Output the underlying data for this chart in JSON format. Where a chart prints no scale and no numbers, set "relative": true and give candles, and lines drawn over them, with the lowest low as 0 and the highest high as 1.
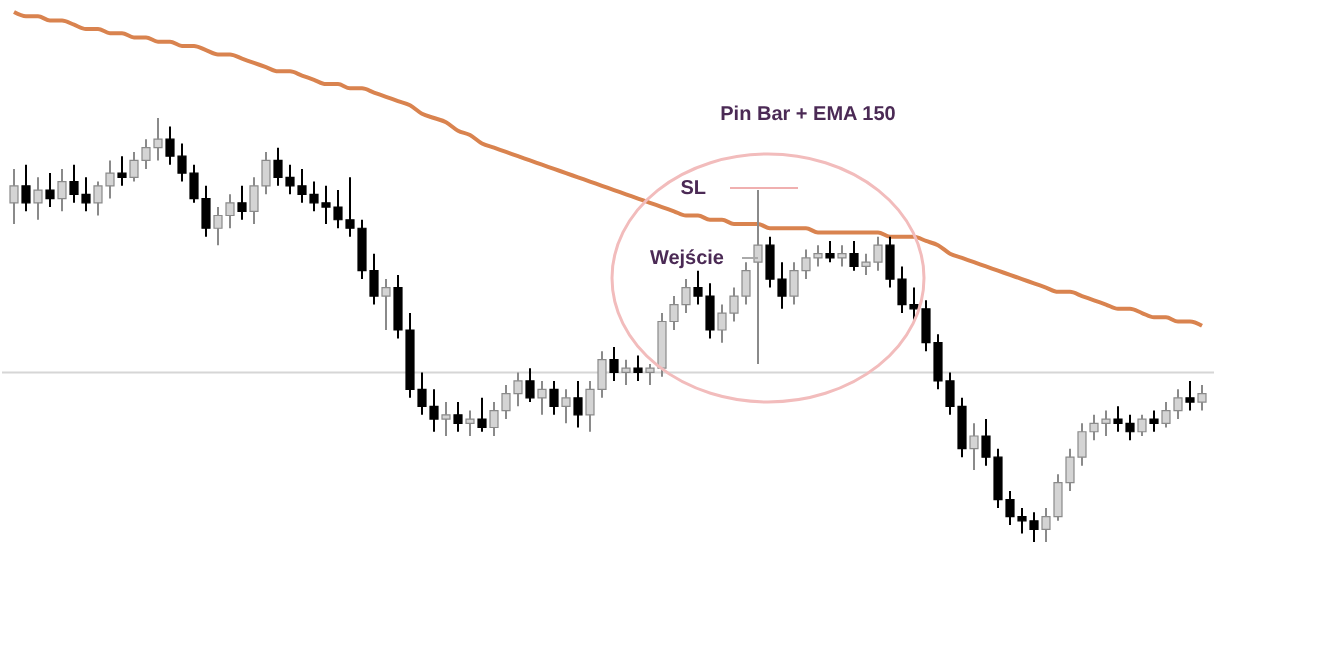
{
  "chart_data": {
    "type": "candlestick",
    "relative": true,
    "categories": [
      null,
      null,
      null,
      null,
      null,
      null,
      null,
      null,
      null,
      null,
      null,
      null,
      null,
      null,
      null,
      null,
      null,
      null,
      null,
      null,
      null,
      null,
      null,
      null,
      null,
      null,
      null,
      null,
      null,
      null,
      null,
      null,
      null,
      null,
      null,
      null,
      null,
      null,
      null,
      null,
      null,
      null,
      null,
      null,
      null,
      null,
      null,
      null,
      null,
      null,
      null,
      null,
      null,
      null,
      null,
      null,
      null,
      null,
      null,
      null,
      null,
      null,
      null,
      null,
      null,
      null,
      null,
      null,
      null,
      null,
      null,
      null,
      null,
      null,
      null,
      null,
      null,
      null,
      null,
      null,
      null,
      null,
      null,
      null,
      null,
      null,
      null,
      null,
      null,
      null,
      null,
      null,
      null,
      null,
      null,
      null,
      null,
      null,
      null,
      null
    ],
    "ohlc": [
      [
        0.8,
        0.88,
        0.75,
        0.84
      ],
      [
        0.84,
        0.89,
        0.78,
        0.8
      ],
      [
        0.8,
        0.86,
        0.76,
        0.83
      ],
      [
        0.83,
        0.87,
        0.79,
        0.81
      ],
      [
        0.81,
        0.88,
        0.78,
        0.85
      ],
      [
        0.85,
        0.89,
        0.8,
        0.82
      ],
      [
        0.82,
        0.86,
        0.78,
        0.8
      ],
      [
        0.8,
        0.85,
        0.77,
        0.84
      ],
      [
        0.84,
        0.9,
        0.81,
        0.87
      ],
      [
        0.87,
        0.91,
        0.84,
        0.86
      ],
      [
        0.86,
        0.92,
        0.85,
        0.9
      ],
      [
        0.9,
        0.95,
        0.88,
        0.93
      ],
      [
        0.93,
        1.0,
        0.9,
        0.95
      ],
      [
        0.95,
        0.98,
        0.89,
        0.91
      ],
      [
        0.91,
        0.94,
        0.85,
        0.87
      ],
      [
        0.87,
        0.89,
        0.8,
        0.81
      ],
      [
        0.81,
        0.84,
        0.72,
        0.74
      ],
      [
        0.74,
        0.79,
        0.7,
        0.77
      ],
      [
        0.77,
        0.82,
        0.74,
        0.8
      ],
      [
        0.8,
        0.84,
        0.76,
        0.78
      ],
      [
        0.78,
        0.86,
        0.75,
        0.84
      ],
      [
        0.84,
        0.92,
        0.82,
        0.9
      ],
      [
        0.9,
        0.93,
        0.84,
        0.86
      ],
      [
        0.86,
        0.89,
        0.82,
        0.84
      ],
      [
        0.84,
        0.88,
        0.8,
        0.82
      ],
      [
        0.82,
        0.85,
        0.78,
        0.8
      ],
      [
        0.8,
        0.84,
        0.75,
        0.79
      ],
      [
        0.79,
        0.83,
        0.74,
        0.76
      ],
      [
        0.76,
        0.86,
        0.72,
        0.74
      ],
      [
        0.74,
        0.76,
        0.62,
        0.64
      ],
      [
        0.64,
        0.68,
        0.56,
        0.58
      ],
      [
        0.58,
        0.62,
        0.5,
        0.6
      ],
      [
        0.6,
        0.63,
        0.48,
        0.5
      ],
      [
        0.5,
        0.54,
        0.34,
        0.36
      ],
      [
        0.36,
        0.4,
        0.3,
        0.32
      ],
      [
        0.32,
        0.36,
        0.26,
        0.29
      ],
      [
        0.29,
        0.33,
        0.25,
        0.3
      ],
      [
        0.3,
        0.33,
        0.26,
        0.28
      ],
      [
        0.28,
        0.31,
        0.25,
        0.29
      ],
      [
        0.29,
        0.34,
        0.26,
        0.27
      ],
      [
        0.27,
        0.33,
        0.25,
        0.31
      ],
      [
        0.31,
        0.37,
        0.29,
        0.35
      ],
      [
        0.35,
        0.4,
        0.32,
        0.38
      ],
      [
        0.38,
        0.41,
        0.33,
        0.34
      ],
      [
        0.34,
        0.38,
        0.3,
        0.36
      ],
      [
        0.36,
        0.38,
        0.3,
        0.32
      ],
      [
        0.32,
        0.36,
        0.28,
        0.34
      ],
      [
        0.34,
        0.38,
        0.27,
        0.3
      ],
      [
        0.3,
        0.38,
        0.26,
        0.36
      ],
      [
        0.36,
        0.45,
        0.34,
        0.43
      ],
      [
        0.43,
        0.46,
        0.38,
        0.4
      ],
      [
        0.4,
        0.43,
        0.37,
        0.41
      ],
      [
        0.41,
        0.44,
        0.38,
        0.4
      ],
      [
        0.4,
        0.42,
        0.37,
        0.41
      ],
      [
        0.41,
        0.54,
        0.39,
        0.52
      ],
      [
        0.52,
        0.58,
        0.5,
        0.56
      ],
      [
        0.56,
        0.62,
        0.54,
        0.6
      ],
      [
        0.6,
        0.64,
        0.56,
        0.58
      ],
      [
        0.58,
        0.61,
        0.48,
        0.5
      ],
      [
        0.5,
        0.56,
        0.47,
        0.54
      ],
      [
        0.54,
        0.6,
        0.52,
        0.58
      ],
      [
        0.58,
        0.66,
        0.56,
        0.64
      ],
      [
        0.66,
        0.83,
        0.42,
        0.7
      ],
      [
        0.7,
        0.72,
        0.6,
        0.62
      ],
      [
        0.62,
        0.66,
        0.55,
        0.58
      ],
      [
        0.58,
        0.66,
        0.56,
        0.64
      ],
      [
        0.64,
        0.69,
        0.62,
        0.67
      ],
      [
        0.67,
        0.7,
        0.65,
        0.68
      ],
      [
        0.68,
        0.71,
        0.66,
        0.67
      ],
      [
        0.67,
        0.7,
        0.65,
        0.68
      ],
      [
        0.68,
        0.71,
        0.64,
        0.65
      ],
      [
        0.65,
        0.68,
        0.63,
        0.66
      ],
      [
        0.66,
        0.72,
        0.64,
        0.7
      ],
      [
        0.7,
        0.72,
        0.6,
        0.62
      ],
      [
        0.62,
        0.65,
        0.54,
        0.56
      ],
      [
        0.56,
        0.6,
        0.52,
        0.55
      ],
      [
        0.55,
        0.57,
        0.45,
        0.47
      ],
      [
        0.47,
        0.49,
        0.36,
        0.38
      ],
      [
        0.38,
        0.4,
        0.3,
        0.32
      ],
      [
        0.32,
        0.34,
        0.2,
        0.22
      ],
      [
        0.22,
        0.28,
        0.17,
        0.25
      ],
      [
        0.25,
        0.29,
        0.18,
        0.2
      ],
      [
        0.2,
        0.22,
        0.08,
        0.1
      ],
      [
        0.1,
        0.12,
        0.04,
        0.06
      ],
      [
        0.06,
        0.08,
        0.02,
        0.05
      ],
      [
        0.05,
        0.07,
        0.0,
        0.03
      ],
      [
        0.03,
        0.08,
        0.0,
        0.06
      ],
      [
        0.06,
        0.16,
        0.05,
        0.14
      ],
      [
        0.14,
        0.22,
        0.12,
        0.2
      ],
      [
        0.2,
        0.28,
        0.18,
        0.26
      ],
      [
        0.26,
        0.3,
        0.24,
        0.28
      ],
      [
        0.28,
        0.31,
        0.25,
        0.29
      ],
      [
        0.29,
        0.32,
        0.26,
        0.28
      ],
      [
        0.28,
        0.3,
        0.24,
        0.26
      ],
      [
        0.26,
        0.3,
        0.25,
        0.29
      ],
      [
        0.29,
        0.31,
        0.26,
        0.28
      ],
      [
        0.28,
        0.33,
        0.27,
        0.31
      ],
      [
        0.31,
        0.36,
        0.29,
        0.34
      ],
      [
        0.34,
        0.38,
        0.31,
        0.33
      ],
      [
        0.33,
        0.37,
        0.31,
        0.35
      ]
    ],
    "series": [
      {
        "type": "line",
        "color": "#d9834f",
        "values": [
          1.25,
          1.24,
          1.24,
          1.23,
          1.23,
          1.22,
          1.21,
          1.21,
          1.2,
          1.2,
          1.19,
          1.19,
          1.18,
          1.18,
          1.17,
          1.17,
          1.16,
          1.15,
          1.15,
          1.14,
          1.13,
          1.12,
          1.11,
          1.11,
          1.1,
          1.09,
          1.08,
          1.08,
          1.07,
          1.07,
          1.06,
          1.05,
          1.04,
          1.03,
          1.01,
          1.0,
          0.99,
          0.97,
          0.96,
          0.94,
          0.93,
          0.92,
          0.91,
          0.9,
          0.89,
          0.88,
          0.87,
          0.86,
          0.85,
          0.84,
          0.83,
          0.82,
          0.81,
          0.8,
          0.79,
          0.78,
          0.77,
          0.77,
          0.76,
          0.76,
          0.75,
          0.75,
          0.75,
          0.74,
          0.74,
          0.74,
          0.74,
          0.73,
          0.73,
          0.73,
          0.73,
          0.73,
          0.73,
          0.72,
          0.72,
          0.72,
          0.71,
          0.7,
          0.68,
          0.67,
          0.66,
          0.65,
          0.64,
          0.63,
          0.62,
          0.61,
          0.6,
          0.59,
          0.59,
          0.58,
          0.57,
          0.56,
          0.55,
          0.55,
          0.54,
          0.53,
          0.53,
          0.52,
          0.52,
          0.51
        ]
      }
    ],
    "ref_lines": [
      {
        "axis": "y",
        "value": 0.4,
        "color": "#d6d6d6"
      }
    ],
    "annotations": [
      "Pin Bar + EMA 150",
      "SL",
      "Wejście"
    ]
  }
}
